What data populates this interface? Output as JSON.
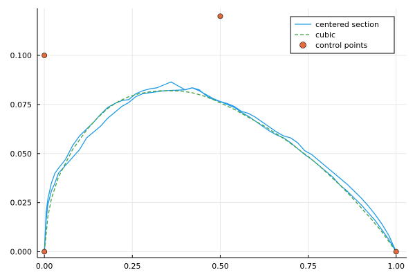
{
  "chart_data": {
    "type": "line",
    "title": "",
    "xlabel": "",
    "ylabel": "",
    "xlim": [
      -0.02,
      1.03
    ],
    "ylim": [
      -0.003,
      0.124
    ],
    "x_ticks": [
      0.0,
      0.25,
      0.5,
      0.75,
      1.0
    ],
    "x_tick_labels": [
      "0.00",
      "0.25",
      "0.50",
      "0.75",
      "1.00"
    ],
    "y_ticks": [
      0.0,
      0.025,
      0.05,
      0.075,
      0.1
    ],
    "y_tick_labels": [
      "0.000",
      "0.025",
      "0.050",
      "0.075",
      "0.100"
    ],
    "grid": true,
    "legend_position": "top-right",
    "series": [
      {
        "name": "centered section",
        "kind": "line",
        "color": "#1f9be6",
        "dash": "solid",
        "points": [
          [
            0.0,
            0.0
          ],
          [
            0.005,
            0.016
          ],
          [
            0.01,
            0.024
          ],
          [
            0.02,
            0.031
          ],
          [
            0.03,
            0.035
          ],
          [
            0.04,
            0.04
          ],
          [
            0.06,
            0.044
          ],
          [
            0.08,
            0.048
          ],
          [
            0.1,
            0.052
          ],
          [
            0.12,
            0.058
          ],
          [
            0.14,
            0.061
          ],
          [
            0.16,
            0.064
          ],
          [
            0.18,
            0.068
          ],
          [
            0.2,
            0.071
          ],
          [
            0.22,
            0.074
          ],
          [
            0.24,
            0.076
          ],
          [
            0.26,
            0.079
          ],
          [
            0.28,
            0.0805
          ],
          [
            0.3,
            0.081
          ],
          [
            0.32,
            0.0815
          ],
          [
            0.34,
            0.082
          ],
          [
            0.36,
            0.0822
          ],
          [
            0.38,
            0.0823
          ],
          [
            0.4,
            0.0825
          ],
          [
            0.42,
            0.0835
          ],
          [
            0.44,
            0.082
          ],
          [
            0.46,
            0.08
          ],
          [
            0.48,
            0.078
          ],
          [
            0.5,
            0.0765
          ],
          [
            0.52,
            0.075
          ],
          [
            0.54,
            0.0735
          ],
          [
            0.56,
            0.071
          ],
          [
            0.58,
            0.069
          ],
          [
            0.6,
            0.0665
          ],
          [
            0.62,
            0.064
          ],
          [
            0.64,
            0.0615
          ],
          [
            0.66,
            0.0595
          ],
          [
            0.68,
            0.058
          ],
          [
            0.7,
            0.0555
          ],
          [
            0.72,
            0.0525
          ],
          [
            0.74,
            0.0495
          ],
          [
            0.76,
            0.047
          ],
          [
            0.78,
            0.044
          ],
          [
            0.8,
            0.041
          ],
          [
            0.82,
            0.038
          ],
          [
            0.84,
            0.034
          ],
          [
            0.86,
            0.031
          ],
          [
            0.88,
            0.0275
          ],
          [
            0.9,
            0.024
          ],
          [
            0.92,
            0.02
          ],
          [
            0.94,
            0.016
          ],
          [
            0.96,
            0.011
          ],
          [
            0.98,
            0.006
          ],
          [
            1.0,
            0.0
          ]
        ]
      },
      {
        "name": "",
        "kind": "line",
        "color": "#1f9be6",
        "dash": "solid",
        "points": [
          [
            0.0,
            0.0
          ],
          [
            0.005,
            0.02
          ],
          [
            0.01,
            0.027
          ],
          [
            0.02,
            0.035
          ],
          [
            0.03,
            0.04
          ],
          [
            0.04,
            0.0425
          ],
          [
            0.06,
            0.047
          ],
          [
            0.08,
            0.054
          ],
          [
            0.1,
            0.059
          ],
          [
            0.12,
            0.0625
          ],
          [
            0.14,
            0.066
          ],
          [
            0.16,
            0.07
          ],
          [
            0.18,
            0.0735
          ],
          [
            0.2,
            0.0755
          ],
          [
            0.22,
            0.077
          ],
          [
            0.24,
            0.0775
          ],
          [
            0.26,
            0.0805
          ],
          [
            0.28,
            0.082
          ],
          [
            0.3,
            0.083
          ],
          [
            0.32,
            0.0835
          ],
          [
            0.34,
            0.085
          ],
          [
            0.36,
            0.0865
          ],
          [
            0.38,
            0.0845
          ],
          [
            0.4,
            0.0825
          ],
          [
            0.42,
            0.0835
          ],
          [
            0.44,
            0.0825
          ],
          [
            0.46,
            0.0795
          ],
          [
            0.48,
            0.0775
          ],
          [
            0.5,
            0.0765
          ],
          [
            0.52,
            0.0755
          ],
          [
            0.54,
            0.074
          ],
          [
            0.56,
            0.0715
          ],
          [
            0.58,
            0.0705
          ],
          [
            0.6,
            0.0685
          ],
          [
            0.62,
            0.066
          ],
          [
            0.64,
            0.0635
          ],
          [
            0.66,
            0.061
          ],
          [
            0.68,
            0.059
          ],
          [
            0.7,
            0.058
          ],
          [
            0.72,
            0.0555
          ],
          [
            0.74,
            0.0515
          ],
          [
            0.76,
            0.0495
          ],
          [
            0.78,
            0.0465
          ],
          [
            0.8,
            0.0435
          ],
          [
            0.82,
            0.0405
          ],
          [
            0.84,
            0.0375
          ],
          [
            0.86,
            0.0345
          ],
          [
            0.88,
            0.031
          ],
          [
            0.9,
            0.0275
          ],
          [
            0.92,
            0.0235
          ],
          [
            0.94,
            0.019
          ],
          [
            0.96,
            0.014
          ],
          [
            0.98,
            0.008
          ],
          [
            1.0,
            0.0
          ]
        ]
      },
      {
        "name": "cubic",
        "kind": "line",
        "color": "#3ea13e",
        "dash": "dashed",
        "points": [
          [
            0.0,
            0.0
          ],
          [
            0.01,
            0.018
          ],
          [
            0.02,
            0.027
          ],
          [
            0.04,
            0.038
          ],
          [
            0.06,
            0.045
          ],
          [
            0.08,
            0.052
          ],
          [
            0.1,
            0.057
          ],
          [
            0.12,
            0.062
          ],
          [
            0.15,
            0.068
          ],
          [
            0.18,
            0.073
          ],
          [
            0.21,
            0.0765
          ],
          [
            0.24,
            0.079
          ],
          [
            0.27,
            0.0805
          ],
          [
            0.3,
            0.0815
          ],
          [
            0.33,
            0.082
          ],
          [
            0.36,
            0.082
          ],
          [
            0.39,
            0.0818
          ],
          [
            0.42,
            0.081
          ],
          [
            0.45,
            0.0795
          ],
          [
            0.48,
            0.0775
          ],
          [
            0.51,
            0.075
          ],
          [
            0.54,
            0.0725
          ],
          [
            0.57,
            0.0695
          ],
          [
            0.6,
            0.0665
          ],
          [
            0.63,
            0.0635
          ],
          [
            0.66,
            0.06
          ],
          [
            0.69,
            0.0565
          ],
          [
            0.72,
            0.0525
          ],
          [
            0.75,
            0.0485
          ],
          [
            0.78,
            0.044
          ],
          [
            0.81,
            0.039
          ],
          [
            0.84,
            0.034
          ],
          [
            0.87,
            0.0285
          ],
          [
            0.9,
            0.0225
          ],
          [
            0.93,
            0.0165
          ],
          [
            0.96,
            0.01
          ],
          [
            0.98,
            0.005
          ],
          [
            1.0,
            0.0
          ]
        ]
      },
      {
        "name": "control points",
        "kind": "scatter",
        "color": "#e26a3c",
        "points": [
          [
            0.0,
            0.0
          ],
          [
            0.0,
            0.1
          ],
          [
            0.5,
            0.12
          ],
          [
            1.0,
            0.0
          ]
        ]
      }
    ]
  }
}
